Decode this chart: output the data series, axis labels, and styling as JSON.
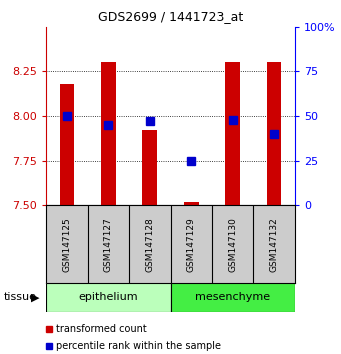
{
  "title": "GDS2699 / 1441723_at",
  "samples": [
    "GSM147125",
    "GSM147127",
    "GSM147128",
    "GSM147129",
    "GSM147130",
    "GSM147132"
  ],
  "red_values": [
    8.18,
    8.3,
    7.92,
    7.52,
    8.3,
    8.3
  ],
  "blue_values": [
    50,
    45,
    47,
    25,
    48,
    40
  ],
  "ylim_left": [
    7.5,
    8.5
  ],
  "ylim_right": [
    0,
    100
  ],
  "yticks_left": [
    7.5,
    7.75,
    8.0,
    8.25
  ],
  "yticks_right": [
    0,
    25,
    50,
    75,
    100
  ],
  "groups": [
    {
      "label": "epithelium",
      "indices": [
        0,
        1,
        2
      ],
      "color": "#bbffbb"
    },
    {
      "label": "mesenchyme",
      "indices": [
        3,
        4,
        5
      ],
      "color": "#44ee44"
    }
  ],
  "red_color": "#cc0000",
  "blue_color": "#0000cc",
  "bar_bottom": 7.5,
  "legend_red": "transformed count",
  "legend_blue": "percentile rank within the sample",
  "tissue_label": "tissue",
  "plot_bg_color": "#ffffff",
  "label_area_color": "#cccccc",
  "right_axis_color": "#0000ff",
  "left_axis_color": "#cc0000",
  "bar_width": 0.35,
  "blue_marker_size": 6
}
